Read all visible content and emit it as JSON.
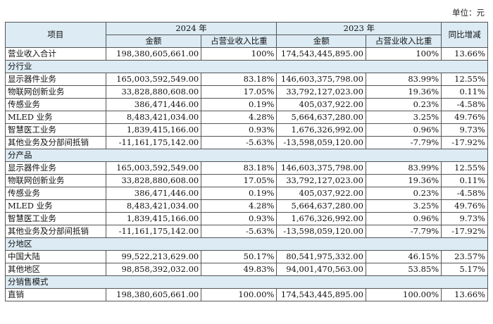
{
  "unit": "单位：元",
  "headers": {
    "item": "项目",
    "year_2024": "2024 年",
    "year_2023": "2023 年",
    "yoy": "同比增减",
    "amount": "金额",
    "share": "占营业收入比重"
  },
  "total": {
    "label": "营业收入合计",
    "amt2024": "198,380,605,661.00",
    "pct2024": "100%",
    "amt2023": "174,543,445,895.00",
    "pct2023": "100%",
    "yoy": "13.66%"
  },
  "sections": [
    {
      "title": "分行业",
      "rows": [
        {
          "label": "显示器件业务",
          "amt2024": "165,003,592,549.00",
          "pct2024": "83.18%",
          "amt2023": "146,603,375,798.00",
          "pct2023": "83.99%",
          "yoy": "12.55%"
        },
        {
          "label": "物联网创新业务",
          "amt2024": "33,828,880,608.00",
          "pct2024": "17.05%",
          "amt2023": "33,792,127,023.00",
          "pct2023": "19.36%",
          "yoy": "0.11%"
        },
        {
          "label": "传感业务",
          "amt2024": "386,471,446.00",
          "pct2024": "0.19%",
          "amt2023": "405,037,922.00",
          "pct2023": "0.23%",
          "yoy": "-4.58%"
        },
        {
          "label": "MLED 业务",
          "amt2024": "8,483,421,034.00",
          "pct2024": "4.28%",
          "amt2023": "5,664,637,280.00",
          "pct2023": "3.25%",
          "yoy": "49.76%"
        },
        {
          "label": "智慧医工业务",
          "amt2024": "1,839,415,166.00",
          "pct2024": "0.93%",
          "amt2023": "1,676,326,992.00",
          "pct2023": "0.96%",
          "yoy": "9.73%"
        },
        {
          "label": "其他业务及分部间抵销",
          "amt2024": "-11,161,175,142.00",
          "pct2024": "-5.63%",
          "amt2023": "-13,598,059,120.00",
          "pct2023": "-7.79%",
          "yoy": "-17.92%"
        }
      ]
    },
    {
      "title": "分产品",
      "rows": [
        {
          "label": "显示器件业务",
          "amt2024": "165,003,592,549.00",
          "pct2024": "83.18%",
          "amt2023": "146,603,375,798.00",
          "pct2023": "83.99%",
          "yoy": "12.55%"
        },
        {
          "label": "物联网创新业务",
          "amt2024": "33,828,880,608.00",
          "pct2024": "17.05%",
          "amt2023": "33,792,127,023.00",
          "pct2023": "19.36%",
          "yoy": "0.11%"
        },
        {
          "label": "传感业务",
          "amt2024": "386,471,446.00",
          "pct2024": "0.19%",
          "amt2023": "405,037,922.00",
          "pct2023": "0.23%",
          "yoy": "-4.58%"
        },
        {
          "label": "MLED 业务",
          "amt2024": "8,483,421,034.00",
          "pct2024": "4.28%",
          "amt2023": "5,664,637,280.00",
          "pct2023": "3.25%",
          "yoy": "49.76%"
        },
        {
          "label": "智慧医工业务",
          "amt2024": "1,839,415,166.00",
          "pct2024": "0.93%",
          "amt2023": "1,676,326,992.00",
          "pct2023": "0.96%",
          "yoy": "9.73%"
        },
        {
          "label": "其他业务及分部间抵销",
          "amt2024": "-11,161,175,142.00",
          "pct2024": "-5.63%",
          "amt2023": "-13,598,059,120.00",
          "pct2023": "-7.79%",
          "yoy": "-17.92%"
        }
      ]
    },
    {
      "title": "分地区",
      "rows": [
        {
          "label": "中国大陆",
          "amt2024": "99,522,213,629.00",
          "pct2024": "50.17%",
          "amt2023": "80,541,975,332.00",
          "pct2023": "46.15%",
          "yoy": "23.57%"
        },
        {
          "label": "其他地区",
          "amt2024": "98,858,392,032.00",
          "pct2024": "49.83%",
          "amt2023": "94,001,470,563.00",
          "pct2023": "53.85%",
          "yoy": "5.17%"
        }
      ]
    },
    {
      "title": "分销售模式",
      "rows": [
        {
          "label": "直销",
          "amt2024": "198,380,605,661.00",
          "pct2024": "100.00%",
          "amt2023": "174,543,445,895.00",
          "pct2023": "100.00%",
          "yoy": "13.66%"
        }
      ]
    }
  ],
  "colors": {
    "header_bg": "#dcebf4",
    "border": "#555555"
  }
}
